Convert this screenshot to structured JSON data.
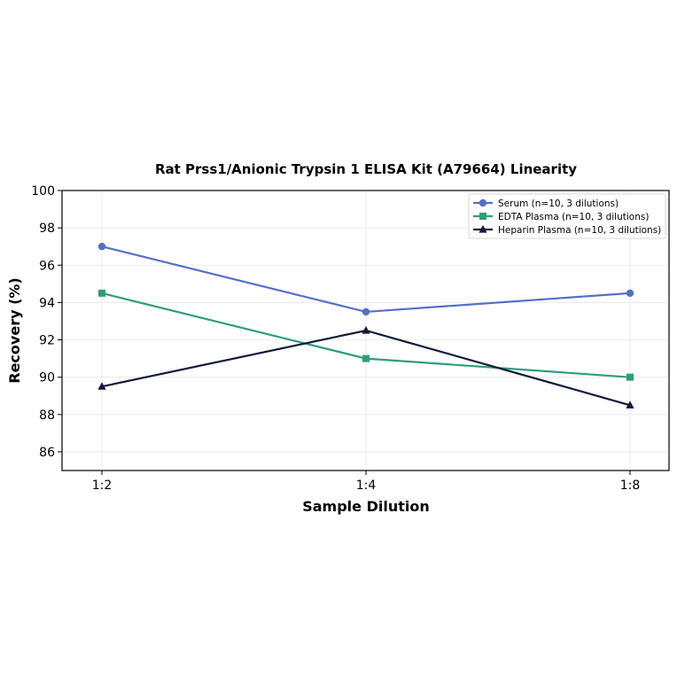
{
  "chart_data": {
    "type": "line",
    "title": "Rat Prss1/Anionic Trypsin 1 ELISA Kit (A79664) Linearity",
    "xlabel": "Sample Dilution",
    "ylabel": "Recovery (%)",
    "categories": [
      "1:2",
      "1:4",
      "1:8"
    ],
    "ylim": [
      85,
      100
    ],
    "yticks": [
      86,
      88,
      90,
      92,
      94,
      96,
      98,
      100
    ],
    "grid": true,
    "legend_position": "top-right",
    "series": [
      {
        "name": "Serum (n=10, 3 dilutions)",
        "values": [
          97.0,
          93.5,
          94.5
        ],
        "color": "#5470c6",
        "marker": "circle"
      },
      {
        "name": "EDTA Plasma (n=10, 3 dilutions)",
        "values": [
          94.5,
          91.0,
          90.0
        ],
        "color": "#2e9e78",
        "marker": "square"
      },
      {
        "name": "Heparin Plasma (n=10, 3 dilutions)",
        "values": [
          89.5,
          92.5,
          88.5
        ],
        "color": "#111a3a",
        "marker": "triangle"
      }
    ]
  }
}
